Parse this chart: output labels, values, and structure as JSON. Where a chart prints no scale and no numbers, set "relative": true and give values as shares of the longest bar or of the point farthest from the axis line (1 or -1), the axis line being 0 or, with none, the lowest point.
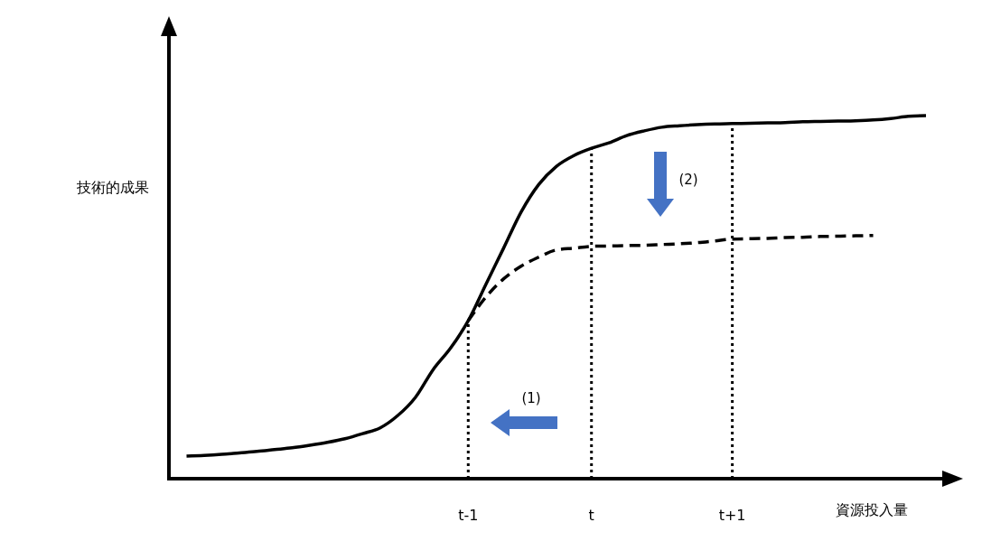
{
  "chart_data": {
    "type": "line",
    "relative": true,
    "xlabel": "資源投入量",
    "ylabel": "技術的成果",
    "categories": [
      null,
      null,
      null,
      null,
      null,
      null,
      null,
      null,
      null,
      null,
      null,
      null,
      null,
      null,
      null,
      null,
      null,
      "t-1",
      null,
      null,
      null,
      null,
      null,
      null,
      "t",
      null,
      null,
      null,
      null,
      null,
      null,
      null,
      "t+1",
      null,
      null,
      null,
      null,
      null,
      null,
      null,
      null,
      null,
      null,
      null
    ],
    "series": [
      {
        "color": "#000000",
        "line_style": "solid",
        "values": [
          null,
          0.062,
          0.064,
          0.067,
          0.071,
          0.075,
          0.08,
          0.085,
          0.092,
          0.1,
          0.11,
          0.124,
          0.14,
          0.174,
          0.224,
          0.3,
          0.36,
          0.435,
          0.535,
          0.634,
          0.734,
          0.81,
          0.86,
          0.89,
          0.91,
          0.925,
          0.945,
          0.958,
          0.968,
          0.972,
          0.975,
          0.977,
          0.978,
          0.979,
          0.98,
          0.981,
          0.983,
          0.984,
          0.985,
          0.986,
          0.988,
          0.992,
          0.998,
          1
        ]
      },
      {
        "color": "#000000",
        "line_style": "dashed",
        "values": [
          null,
          null,
          null,
          null,
          null,
          null,
          null,
          null,
          null,
          null,
          null,
          null,
          null,
          null,
          null,
          null,
          null,
          0.435,
          0.5,
          0.55,
          0.585,
          0.61,
          0.63,
          0.635,
          0.64,
          0.641,
          0.642,
          0.643,
          0.645,
          0.647,
          0.65,
          0.655,
          0.66,
          0.661,
          0.662,
          0.664,
          0.665,
          0.667,
          0.668,
          0.669,
          0.67,
          null,
          null,
          null
        ]
      }
    ],
    "ref_lines": [
      {
        "axis": "x",
        "value": "t-1",
        "line_style": "dotted"
      },
      {
        "axis": "x",
        "value": "t",
        "line_style": "dotted"
      },
      {
        "axis": "x",
        "value": "t+1",
        "line_style": "dotted"
      }
    ],
    "annotations": [
      "(1)",
      "(2)"
    ],
    "marker": "none"
  }
}
